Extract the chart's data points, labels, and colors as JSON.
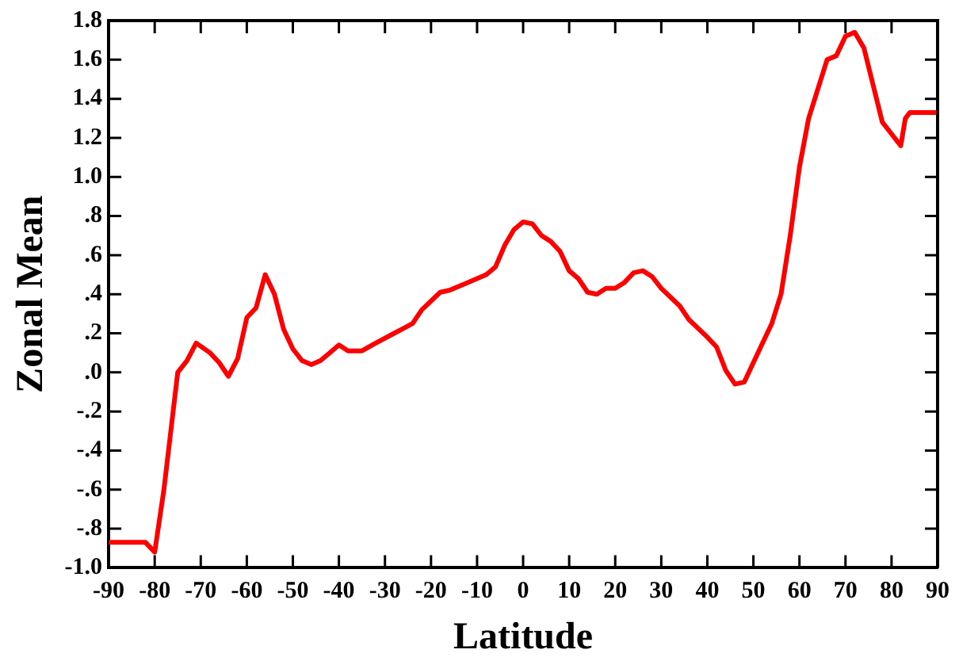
{
  "chart_data": {
    "type": "line",
    "xlabel": "Latitude",
    "ylabel": "Zonal Mean",
    "x": [
      -90,
      -82,
      -80,
      -78,
      -75,
      -73,
      -71,
      -68,
      -66,
      -64,
      -62,
      -60,
      -58,
      -56,
      -54,
      -52,
      -50,
      -48,
      -46,
      -44,
      -42,
      -40,
      -38,
      -35,
      -32,
      -28,
      -24,
      -22,
      -18,
      -16,
      -12,
      -8,
      -6,
      -4,
      -2,
      0,
      2,
      4,
      6,
      8,
      10,
      12,
      14,
      16,
      18,
      20,
      22,
      24,
      26,
      28,
      30,
      34,
      36,
      40,
      42,
      44,
      46,
      48,
      50,
      52,
      54,
      56,
      58,
      60,
      62,
      64,
      66,
      68,
      70,
      72,
      74,
      76,
      78,
      80,
      82,
      83,
      84,
      90
    ],
    "series": [
      {
        "color": "#ff0000",
        "values": [
          -0.87,
          -0.87,
          -0.92,
          -0.6,
          0.0,
          0.06,
          0.15,
          0.1,
          0.05,
          -0.02,
          0.07,
          0.28,
          0.33,
          0.5,
          0.4,
          0.22,
          0.12,
          0.06,
          0.04,
          0.06,
          0.1,
          0.14,
          0.11,
          0.11,
          0.15,
          0.2,
          0.25,
          0.32,
          0.41,
          0.42,
          0.46,
          0.5,
          0.54,
          0.65,
          0.73,
          0.77,
          0.76,
          0.7,
          0.67,
          0.62,
          0.52,
          0.48,
          0.41,
          0.4,
          0.43,
          0.43,
          0.46,
          0.51,
          0.52,
          0.49,
          0.43,
          0.34,
          0.27,
          0.18,
          0.13,
          0.01,
          -0.06,
          -0.05,
          0.05,
          0.15,
          0.25,
          0.4,
          0.7,
          1.05,
          1.3,
          1.45,
          1.6,
          1.62,
          1.72,
          1.74,
          1.66,
          1.47,
          1.28,
          1.22,
          1.16,
          1.3,
          1.33,
          1.33
        ]
      }
    ],
    "xlim": [
      -90,
      90
    ],
    "xticks": [
      -90,
      -80,
      -70,
      -60,
      -50,
      -40,
      -30,
      -20,
      -10,
      0,
      10,
      20,
      30,
      40,
      50,
      60,
      70,
      80,
      90
    ],
    "ylim": [
      -1.0,
      1.8
    ],
    "yticks": [
      {
        "value": -1.0,
        "label": "-1.0"
      },
      {
        "value": -0.8,
        "label": "-.8"
      },
      {
        "value": -0.6,
        "label": "-.6"
      },
      {
        "value": -0.4,
        "label": "-.4"
      },
      {
        "value": -0.2,
        "label": "-.2"
      },
      {
        "value": 0,
        "label": ".0"
      },
      {
        "value": 0.2,
        "label": ".2"
      },
      {
        "value": 0.4,
        "label": ".4"
      },
      {
        "value": 0.6,
        "label": ".6"
      },
      {
        "value": 0.8,
        "label": ".8"
      },
      {
        "value": 1.0,
        "label": "1.0"
      },
      {
        "value": 1.2,
        "label": "1.2"
      },
      {
        "value": 1.4,
        "label": "1.4"
      },
      {
        "value": 1.6,
        "label": "1.6"
      },
      {
        "value": 1.8,
        "label": "1.8"
      }
    ],
    "grid": false,
    "legend": false,
    "marker": "none",
    "line_style": "solid"
  }
}
